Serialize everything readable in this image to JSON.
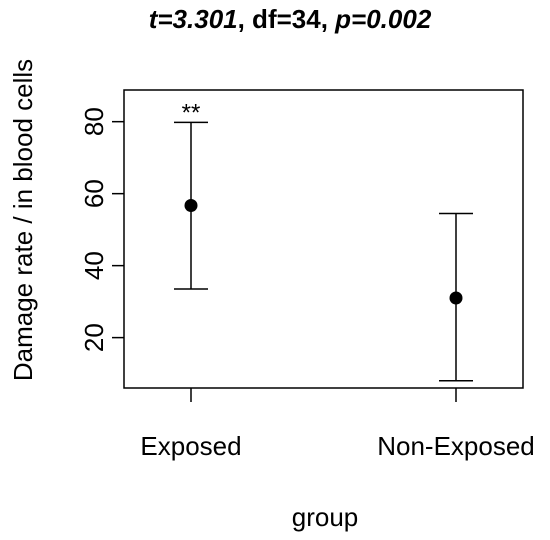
{
  "chart_data": {
    "type": "scatter",
    "title_parts": [
      {
        "text": "t=3.301",
        "italic": true
      },
      {
        "text": ", df=34, ",
        "italic": false
      },
      {
        "text": "p=0.002",
        "italic": true
      }
    ],
    "xlabel": "group",
    "ylabel": "Damage rate / in blood cells",
    "categories": [
      "Exposed",
      "Non-Exposed"
    ],
    "means": [
      56.7,
      31.0
    ],
    "lower": [
      33.5,
      8.0
    ],
    "upper": [
      79.8,
      54.5
    ],
    "annotations": [
      "**",
      ""
    ],
    "yticks": [
      20,
      40,
      60,
      80
    ],
    "ylim": [
      6.0,
      88.8
    ],
    "grid": false
  }
}
